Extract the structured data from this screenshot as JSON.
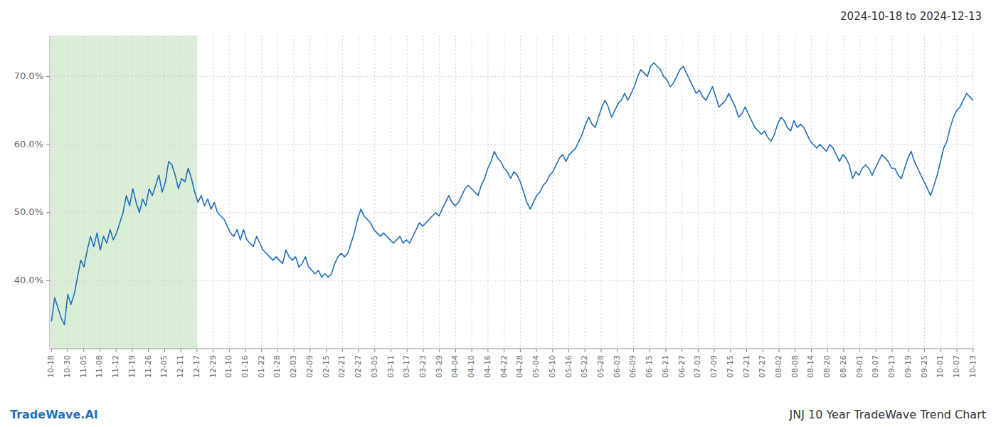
{
  "chart_data": {
    "type": "line",
    "title": "2024-10-18 to 2024-12-13",
    "annotations": [
      "TradeWave.AI",
      "JNJ 10 Year TradeWave Trend Chart"
    ],
    "color": "#1f6fba",
    "grid": true,
    "highlight": {
      "from": "10-18",
      "to": "12-17",
      "color": "#d4ead0"
    },
    "xlim": [
      -0.5,
      283.5
    ],
    "xticks": [
      {
        "value": 0,
        "label": "10-18"
      },
      {
        "value": 4.964912,
        "label": "10-30"
      },
      {
        "value": 9.929825,
        "label": "11-05"
      },
      {
        "value": 14.894737,
        "label": "11-08"
      },
      {
        "value": 19.859649,
        "label": "11-12"
      },
      {
        "value": 24.824561,
        "label": "11-19"
      },
      {
        "value": 29.789474,
        "label": "11-26"
      },
      {
        "value": 34.754386,
        "label": "12-05"
      },
      {
        "value": 39.719298,
        "label": "12-11"
      },
      {
        "value": 44.684211,
        "label": "12-17"
      },
      {
        "value": 49.649123,
        "label": "12-29"
      },
      {
        "value": 54.614035,
        "label": "01-10"
      },
      {
        "value": 59.578947,
        "label": "01-16"
      },
      {
        "value": 64.54386,
        "label": "01-22"
      },
      {
        "value": 69.508772,
        "label": "01-28"
      },
      {
        "value": 74.473684,
        "label": "02-03"
      },
      {
        "value": 79.438596,
        "label": "02-09"
      },
      {
        "value": 84.403509,
        "label": "02-15"
      },
      {
        "value": 89.368421,
        "label": "02-21"
      },
      {
        "value": 94.333333,
        "label": "02-27"
      },
      {
        "value": 99.298246,
        "label": "03-05"
      },
      {
        "value": 104.263158,
        "label": "03-11"
      },
      {
        "value": 109.22807,
        "label": "03-17"
      },
      {
        "value": 114.192982,
        "label": "03-23"
      },
      {
        "value": 119.157895,
        "label": "03-29"
      },
      {
        "value": 124.122807,
        "label": "04-04"
      },
      {
        "value": 129.087719,
        "label": "04-10"
      },
      {
        "value": 134.052632,
        "label": "04-16"
      },
      {
        "value": 139.017544,
        "label": "04-22"
      },
      {
        "value": 143.982456,
        "label": "04-28"
      },
      {
        "value": 148.947368,
        "label": "05-04"
      },
      {
        "value": 153.912281,
        "label": "05-10"
      },
      {
        "value": 158.877193,
        "label": "05-16"
      },
      {
        "value": 163.842105,
        "label": "05-22"
      },
      {
        "value": 168.807018,
        "label": "05-28"
      },
      {
        "value": 173.77193,
        "label": "06-03"
      },
      {
        "value": 178.736842,
        "label": "06-09"
      },
      {
        "value": 183.701754,
        "label": "06-15"
      },
      {
        "value": 188.666667,
        "label": "06-21"
      },
      {
        "value": 193.631579,
        "label": "06-27"
      },
      {
        "value": 198.596491,
        "label": "07-03"
      },
      {
        "value": 203.561404,
        "label": "07-09"
      },
      {
        "value": 208.526316,
        "label": "07-15"
      },
      {
        "value": 213.491228,
        "label": "07-21"
      },
      {
        "value": 218.45614,
        "label": "07-27"
      },
      {
        "value": 223.421053,
        "label": "08-02"
      },
      {
        "value": 228.385965,
        "label": "08-08"
      },
      {
        "value": 233.350877,
        "label": "08-14"
      },
      {
        "value": 238.315789,
        "label": "08-20"
      },
      {
        "value": 243.280702,
        "label": "08-26"
      },
      {
        "value": 248.245614,
        "label": "09-01"
      },
      {
        "value": 253.210526,
        "label": "09-07"
      },
      {
        "value": 258.175439,
        "label": "09-13"
      },
      {
        "value": 263.140351,
        "label": "09-19"
      },
      {
        "value": 268.105263,
        "label": "09-25"
      },
      {
        "value": 273.070175,
        "label": "10-01"
      },
      {
        "value": 278.035088,
        "label": "10-07"
      },
      {
        "value": 283,
        "label": "10-13"
      }
    ],
    "ylim": [
      30,
      76
    ],
    "yticks": [
      {
        "value": 40.0,
        "label": "40.0%"
      },
      {
        "value": 50.0,
        "label": "50.0%"
      },
      {
        "value": 60.0,
        "label": "60.0%"
      },
      {
        "value": 70.0,
        "label": "70.0%"
      }
    ],
    "values": [
      34.0,
      37.5,
      36.0,
      34.5,
      33.5,
      38.0,
      36.5,
      38.0,
      40.5,
      43.0,
      42.0,
      44.5,
      46.5,
      45.0,
      47.0,
      44.5,
      46.5,
      45.5,
      47.5,
      46.0,
      47.0,
      48.5,
      50.0,
      52.5,
      51.0,
      53.5,
      51.5,
      50.0,
      52.0,
      51.0,
      53.5,
      52.5,
      54.0,
      55.5,
      53.0,
      54.5,
      57.5,
      57.0,
      55.5,
      53.5,
      55.0,
      54.5,
      56.5,
      55.0,
      53.0,
      51.5,
      52.5,
      51.0,
      52.0,
      50.5,
      51.5,
      50.0,
      49.5,
      49.0,
      48.0,
      47.0,
      46.5,
      47.5,
      46.0,
      47.5,
      46.0,
      45.5,
      45.0,
      46.5,
      45.5,
      44.5,
      44.0,
      43.5,
      43.0,
      43.5,
      43.0,
      42.5,
      44.5,
      43.5,
      43.0,
      43.5,
      42.0,
      42.5,
      43.5,
      42.0,
      41.5,
      41.0,
      41.5,
      40.5,
      41.0,
      40.5,
      41.0,
      42.5,
      43.5,
      44.0,
      43.5,
      44.0,
      45.5,
      47.0,
      49.0,
      50.5,
      49.5,
      49.0,
      48.5,
      47.5,
      47.0,
      46.5,
      47.0,
      46.5,
      46.0,
      45.5,
      46.0,
      46.5,
      45.5,
      46.0,
      45.5,
      46.5,
      47.5,
      48.5,
      48.0,
      48.5,
      49.0,
      49.5,
      50.0,
      49.5,
      50.5,
      51.5,
      52.5,
      51.5,
      51.0,
      51.5,
      52.5,
      53.5,
      54.0,
      53.5,
      53.0,
      52.5,
      54.0,
      55.0,
      56.5,
      57.5,
      59.0,
      58.0,
      57.5,
      56.5,
      56.0,
      55.0,
      56.0,
      55.5,
      54.5,
      53.0,
      51.5,
      50.5,
      51.5,
      52.5,
      53.0,
      54.0,
      54.5,
      55.5,
      56.0,
      57.0,
      58.0,
      58.5,
      57.5,
      58.5,
      59.0,
      59.5,
      60.5,
      61.5,
      63.0,
      64.0,
      63.0,
      62.5,
      64.0,
      65.5,
      66.5,
      65.5,
      64.0,
      65.0,
      66.0,
      66.5,
      67.5,
      66.5,
      67.5,
      68.5,
      70.0,
      71.0,
      70.5,
      70.0,
      71.5,
      72.0,
      71.5,
      71.0,
      70.0,
      69.5,
      68.5,
      69.0,
      70.0,
      71.0,
      71.5,
      70.5,
      69.5,
      68.5,
      67.5,
      68.0,
      67.0,
      66.5,
      67.5,
      68.5,
      67.0,
      65.5,
      66.0,
      66.5,
      67.5,
      66.5,
      65.5,
      64.0,
      64.5,
      65.5,
      64.5,
      63.5,
      62.5,
      62.0,
      61.5,
      62.0,
      61.0,
      60.5,
      61.5,
      63.0,
      64.0,
      63.5,
      62.5,
      62.0,
      63.5,
      62.5,
      63.0,
      62.5,
      61.5,
      60.5,
      60.0,
      59.5,
      60.0,
      59.5,
      59.0,
      60.0,
      59.5,
      58.5,
      57.5,
      58.5,
      58.0,
      57.0,
      55.0,
      56.0,
      55.5,
      56.5,
      57.0,
      56.5,
      55.5,
      56.5,
      57.5,
      58.5,
      58.0,
      57.5,
      56.5,
      56.5,
      55.5,
      55.0,
      56.5,
      58.0,
      59.0,
      57.5,
      56.5,
      55.5,
      54.5,
      53.5,
      52.5,
      54.0,
      55.5,
      57.5,
      59.5,
      60.5,
      62.5,
      64.0,
      65.0,
      65.5,
      66.5,
      67.5,
      67.0,
      66.5
    ]
  }
}
